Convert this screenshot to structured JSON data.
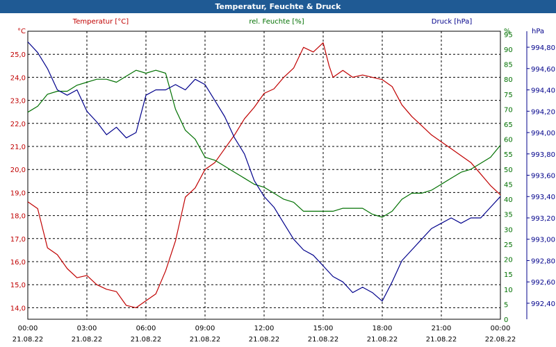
{
  "chart_data": {
    "type": "line",
    "title": "Temperatur, Feuchte & Druck",
    "x_ticks": [
      {
        "time": "00:00",
        "date": "21.08.22"
      },
      {
        "time": "03:00",
        "date": "21.08.22"
      },
      {
        "time": "06:00",
        "date": "21.08.22"
      },
      {
        "time": "09:00",
        "date": "21.08.22"
      },
      {
        "time": "12:00",
        "date": "21.08.22"
      },
      {
        "time": "15:00",
        "date": "21.08.22"
      },
      {
        "time": "18:00",
        "date": "21.08.22"
      },
      {
        "time": "21:00",
        "date": "21.08.22"
      },
      {
        "time": "00:00",
        "date": "22.08.22"
      }
    ],
    "x_range_hours": [
      0,
      24
    ],
    "axes": {
      "temperature": {
        "unit": "°C",
        "range": [
          13.5,
          26.0
        ],
        "ticks": [
          "25,0",
          "24,0",
          "23,0",
          "22,0",
          "21,0",
          "20,0",
          "19,0",
          "18,0",
          "17,0",
          "16,0",
          "15,0",
          "14,0"
        ],
        "tick_values": [
          25,
          24,
          23,
          22,
          21,
          20,
          19,
          18,
          17,
          16,
          15,
          14
        ]
      },
      "humidity": {
        "unit": "%",
        "range": [
          0,
          96
        ],
        "ticks": [
          "95",
          "90",
          "85",
          "80",
          "75",
          "70",
          "65",
          "60",
          "55",
          "50",
          "45",
          "40",
          "35",
          "30",
          "25",
          "20",
          "15",
          "10",
          "5",
          "0"
        ],
        "tick_values": [
          95,
          90,
          85,
          80,
          75,
          70,
          65,
          60,
          55,
          50,
          45,
          40,
          35,
          30,
          25,
          20,
          15,
          10,
          5,
          0
        ]
      },
      "pressure": {
        "unit": "hPa",
        "range": [
          992.25,
          994.95
        ],
        "ticks": [
          "994,80",
          "994,60",
          "994,40",
          "994,20",
          "994,00",
          "993,80",
          "993,60",
          "993,40",
          "993,20",
          "993,00",
          "992,80",
          "992,60",
          "992,40"
        ],
        "tick_values": [
          994.8,
          994.6,
          994.4,
          994.2,
          994.0,
          993.8,
          993.6,
          993.4,
          993.2,
          993.0,
          992.8,
          992.6,
          992.4
        ]
      }
    },
    "series": [
      {
        "name": "Temperatur [°C]",
        "axis": "temperature",
        "color": "#c00000",
        "x": [
          0,
          0.5,
          1,
          1.5,
          2,
          2.5,
          3,
          3.5,
          4,
          4.5,
          5,
          5.5,
          6,
          6.5,
          7,
          7.5,
          8,
          8.5,
          9,
          9.5,
          10,
          10.5,
          11,
          11.5,
          12,
          12.5,
          13,
          13.5,
          14,
          14.5,
          15,
          15.3,
          15.5,
          16,
          16.5,
          17,
          17.5,
          18,
          18.5,
          19,
          19.5,
          20,
          20.5,
          21,
          21.5,
          22,
          22.5,
          23,
          23.5,
          24
        ],
        "values": [
          18.6,
          18.3,
          16.6,
          16.3,
          15.7,
          15.3,
          15.4,
          15.0,
          14.8,
          14.7,
          14.1,
          14.0,
          14.3,
          14.6,
          15.6,
          16.9,
          18.8,
          19.2,
          20.0,
          20.3,
          20.9,
          21.5,
          22.2,
          22.7,
          23.3,
          23.5,
          24.0,
          24.4,
          25.3,
          25.1,
          25.5,
          24.5,
          24.0,
          24.3,
          24.0,
          24.1,
          24.0,
          23.9,
          23.6,
          22.8,
          22.3,
          21.9,
          21.5,
          21.2,
          20.9,
          20.6,
          20.3,
          19.8,
          19.3,
          18.9
        ]
      },
      {
        "name": "rel. Feuchte [%]",
        "axis": "humidity",
        "color": "#007000",
        "x": [
          0,
          0.5,
          1,
          1.5,
          2,
          2.5,
          3,
          3.5,
          4,
          4.5,
          5,
          5.5,
          6,
          6.5,
          7,
          7.5,
          8,
          8.5,
          9,
          9.5,
          10,
          10.5,
          11,
          11.5,
          12,
          12.5,
          13,
          13.5,
          14,
          14.5,
          15,
          15.5,
          16,
          16.5,
          17,
          17.5,
          18,
          18.5,
          19,
          19.5,
          20,
          20.5,
          21,
          21.5,
          22,
          22.5,
          23,
          23.5,
          24
        ],
        "values": [
          69,
          71,
          75,
          76,
          76,
          78,
          79,
          80,
          80,
          79,
          81,
          83,
          82,
          83,
          82,
          70,
          63,
          60,
          54,
          53,
          51,
          49,
          47,
          45,
          44,
          42,
          40,
          39,
          36,
          36,
          36,
          36,
          37,
          37,
          37,
          35,
          34,
          36,
          40,
          42,
          42,
          43,
          45,
          47,
          49,
          50,
          52,
          54,
          58
        ]
      },
      {
        "name": "Druck [hPa]",
        "axis": "pressure",
        "color": "#00008b",
        "x": [
          0,
          0.5,
          1,
          1.5,
          2,
          2.5,
          3,
          3.5,
          4,
          4.5,
          5,
          5.5,
          6,
          6.5,
          7,
          7.5,
          8,
          8.5,
          9,
          9.5,
          10,
          10.5,
          11,
          11.5,
          12,
          12.5,
          13,
          13.5,
          14,
          14.5,
          15,
          15.5,
          16,
          16.5,
          17,
          17.5,
          18,
          18.5,
          19,
          19.5,
          20,
          20.5,
          21,
          21.5,
          22,
          22.5,
          23,
          23.5,
          24
        ],
        "values": [
          994.85,
          994.75,
          994.6,
          994.4,
          994.35,
          994.4,
          994.2,
          994.1,
          993.98,
          994.05,
          993.95,
          994.0,
          994.35,
          994.4,
          994.4,
          994.45,
          994.4,
          994.5,
          994.45,
          994.3,
          994.15,
          993.95,
          993.8,
          993.55,
          993.4,
          993.3,
          993.15,
          993.0,
          992.9,
          992.85,
          992.75,
          992.65,
          992.6,
          992.5,
          992.55,
          992.5,
          992.42,
          992.6,
          992.8,
          992.9,
          993.0,
          993.1,
          993.15,
          993.2,
          993.15,
          993.2,
          993.2,
          993.3,
          993.4
        ]
      }
    ]
  }
}
